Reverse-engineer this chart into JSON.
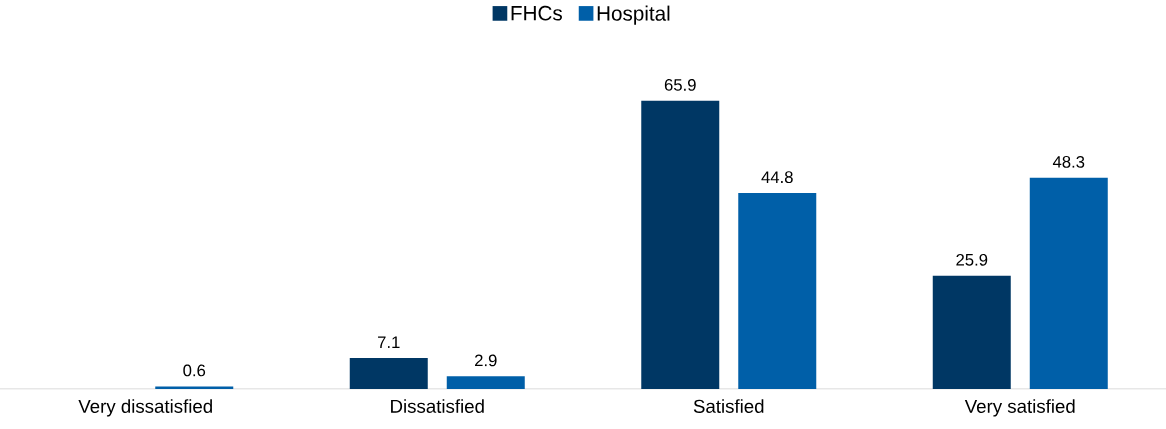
{
  "chart_data": {
    "type": "bar",
    "categories": [
      "Very dissatisfied",
      "Dissatisfied",
      "Satisfied",
      "Very satisfied"
    ],
    "series": [
      {
        "name": "FHCs",
        "color": "#003764",
        "values": [
          null,
          7.1,
          65.9,
          25.9
        ]
      },
      {
        "name": "Hospital",
        "color": "#005fa8",
        "values": [
          0.6,
          2.9,
          44.8,
          48.3
        ]
      }
    ],
    "data_labels": true,
    "legend": "top"
  }
}
